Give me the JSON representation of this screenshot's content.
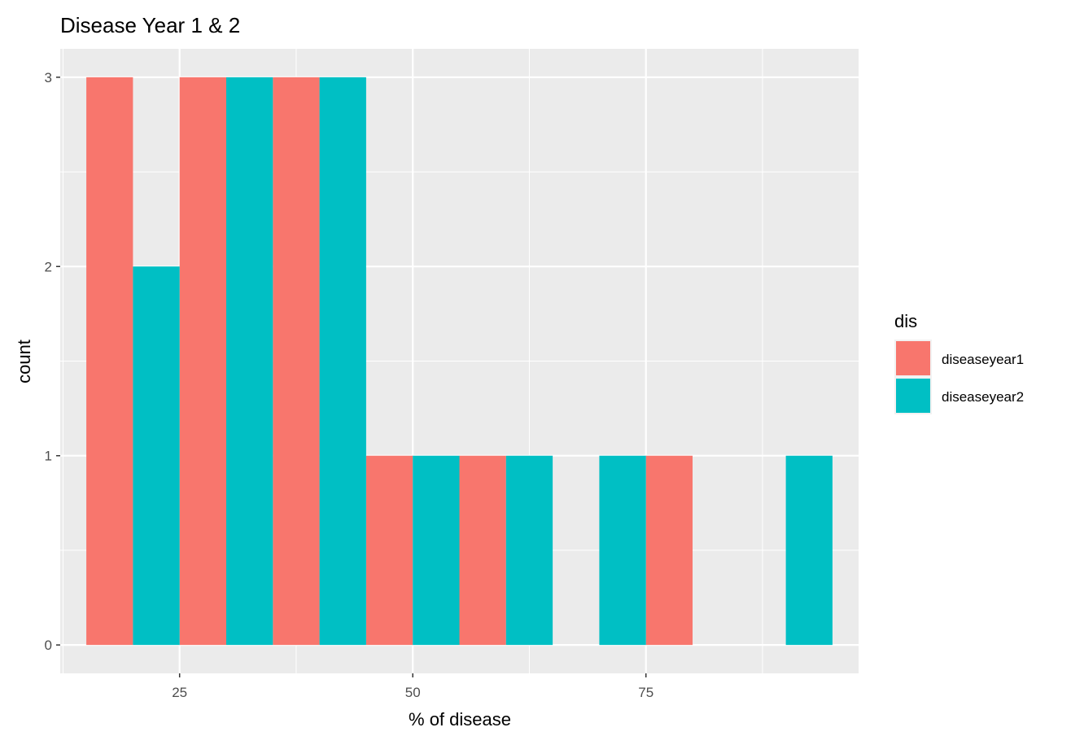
{
  "chart_data": {
    "type": "bar",
    "title": "Disease Year 1 & 2",
    "xlabel": "% of disease",
    "ylabel": "count",
    "xlim": [
      12.2,
      97.8
    ],
    "ylim": [
      -0.15,
      3.15
    ],
    "x_ticks": [
      25,
      50,
      75
    ],
    "y_ticks": [
      0,
      1,
      2,
      3
    ],
    "x_tick_labels": [
      "25",
      "50",
      "75"
    ],
    "y_tick_labels": [
      "0",
      "1",
      "2",
      "3"
    ],
    "bin_width": 5,
    "bins": [
      [
        15,
        20
      ],
      [
        20,
        25
      ],
      [
        25,
        30
      ],
      [
        30,
        35
      ],
      [
        35,
        40
      ],
      [
        40,
        45
      ],
      [
        45,
        50
      ],
      [
        50,
        55
      ],
      [
        55,
        60
      ],
      [
        60,
        65
      ],
      [
        65,
        70
      ],
      [
        70,
        75
      ],
      [
        75,
        80
      ],
      [
        80,
        85
      ],
      [
        85,
        90
      ],
      [
        90,
        95
      ]
    ],
    "bar_position": "dodge",
    "series": [
      {
        "name": "diseaseyear1",
        "color": "#F8766D",
        "bars": [
          {
            "x0": 15,
            "x1": 20,
            "count": 3
          },
          {
            "x0": 25,
            "x1": 30,
            "count": 3
          },
          {
            "x0": 35,
            "x1": 40,
            "count": 3
          },
          {
            "x0": 45,
            "x1": 50,
            "count": 1
          },
          {
            "x0": 55,
            "x1": 60,
            "count": 1
          },
          {
            "x0": 75,
            "x1": 80,
            "count": 1
          }
        ]
      },
      {
        "name": "diseaseyear2",
        "color": "#00BFC4",
        "bars": [
          {
            "x0": 20,
            "x1": 25,
            "count": 2
          },
          {
            "x0": 30,
            "x1": 35,
            "count": 3
          },
          {
            "x0": 40,
            "x1": 45,
            "count": 3
          },
          {
            "x0": 50,
            "x1": 55,
            "count": 1
          },
          {
            "x0": 60,
            "x1": 65,
            "count": 1
          },
          {
            "x0": 70,
            "x1": 75,
            "count": 1
          },
          {
            "x0": 90,
            "x1": 95,
            "count": 1
          }
        ]
      }
    ],
    "legend": {
      "title": "dis",
      "position": "right"
    },
    "grid": true,
    "panel_background": "#EBEBEB",
    "grid_color": "#FFFFFF"
  }
}
